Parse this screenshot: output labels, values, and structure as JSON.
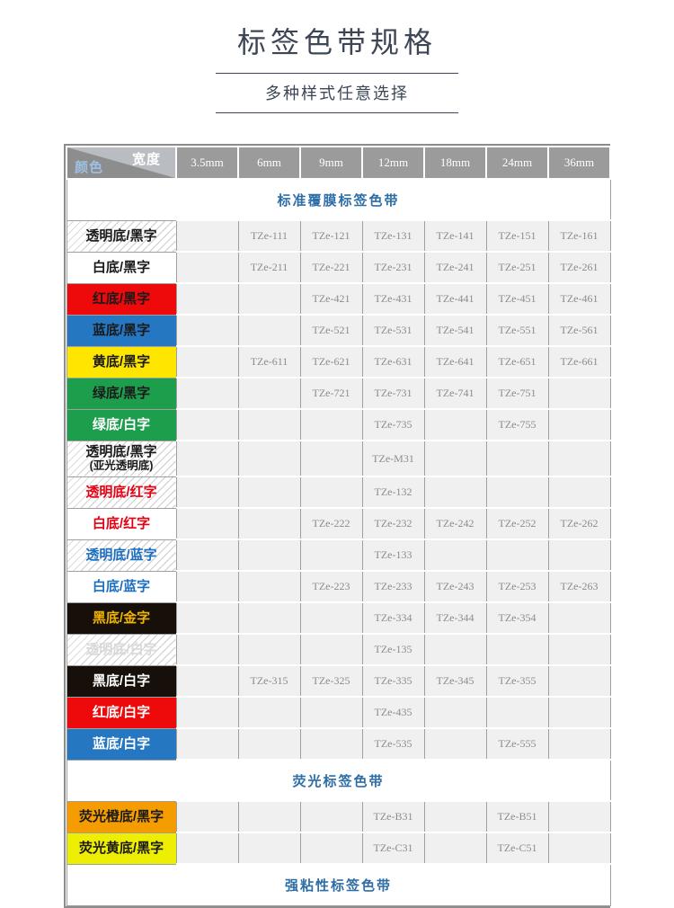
{
  "header": {
    "title": "标签色带规格",
    "subtitle": "多种样式任意选择"
  },
  "colors": {
    "title_text": "#3d4654",
    "section_title": "#2e6ea6",
    "header_bg": "#9b9b9b",
    "corner_dark": "#8d8d8d",
    "corner_light": "#b9bcc0",
    "grid": "#a0a0a0",
    "cell_bg": "#f0f0f0",
    "code_text": "#8c8c8c",
    "width_label_color": "#ffffff",
    "color_label_color": "#9fc0e4"
  },
  "table": {
    "corner": {
      "width_label": "宽度",
      "color_label": "颜色"
    },
    "columns": [
      "3.5mm",
      "6mm",
      "9mm",
      "12mm",
      "18mm",
      "24mm",
      "36mm"
    ],
    "sections": [
      {
        "title": "标准覆膜标签色带",
        "rows": [
          {
            "label": "透明底/黑字",
            "sublabel": "",
            "pattern": "hatch",
            "bg": "#ffffff",
            "fg": "#1a1a1a",
            "cells": [
              "",
              "TZe-111",
              "TZe-121",
              "TZe-131",
              "TZe-141",
              "TZe-151",
              "TZe-161"
            ]
          },
          {
            "label": "白底/黑字",
            "sublabel": "",
            "pattern": "solid",
            "bg": "#ffffff",
            "fg": "#1a1a1a",
            "cells": [
              "",
              "TZe-211",
              "TZe-221",
              "TZe-231",
              "TZe-241",
              "TZe-251",
              "TZe-261"
            ]
          },
          {
            "label": "红底/黑字",
            "sublabel": "",
            "pattern": "solid",
            "bg": "#ee0a0a",
            "fg": "#1a1a1a",
            "cells": [
              "",
              "",
              "TZe-421",
              "TZe-431",
              "TZe-441",
              "TZe-451",
              "TZe-461"
            ]
          },
          {
            "label": "蓝底/黑字",
            "sublabel": "",
            "pattern": "solid",
            "bg": "#2577c2",
            "fg": "#1a1a1a",
            "cells": [
              "",
              "",
              "TZe-521",
              "TZe-531",
              "TZe-541",
              "TZe-551",
              "TZe-561"
            ]
          },
          {
            "label": "黄底/黑字",
            "sublabel": "",
            "pattern": "solid",
            "bg": "#ffe600",
            "fg": "#1a1a1a",
            "cells": [
              "",
              "TZe-611",
              "TZe-621",
              "TZe-631",
              "TZe-641",
              "TZe-651",
              "TZe-661"
            ]
          },
          {
            "label": "绿底/黑字",
            "sublabel": "",
            "pattern": "solid",
            "bg": "#1d9e4d",
            "fg": "#1a1a1a",
            "cells": [
              "",
              "",
              "TZe-721",
              "TZe-731",
              "TZe-741",
              "TZe-751",
              ""
            ]
          },
          {
            "label": "绿底/白字",
            "sublabel": "",
            "pattern": "solid",
            "bg": "#1d9e4d",
            "fg": "#ffffff",
            "cells": [
              "",
              "",
              "",
              "TZe-735",
              "",
              "TZe-755",
              ""
            ]
          },
          {
            "label": "透明底/黑字",
            "sublabel": "(亚光透明底)",
            "pattern": "hatch",
            "bg": "#ffffff",
            "fg": "#1a1a1a",
            "cells": [
              "",
              "",
              "",
              "TZe-M31",
              "",
              "",
              ""
            ]
          },
          {
            "label": "透明底/红字",
            "sublabel": "",
            "pattern": "hatch",
            "bg": "#ffffff",
            "fg": "#e60012",
            "cells": [
              "",
              "",
              "",
              "TZe-132",
              "",
              "",
              ""
            ]
          },
          {
            "label": "白底/红字",
            "sublabel": "",
            "pattern": "solid",
            "bg": "#ffffff",
            "fg": "#e60012",
            "cells": [
              "",
              "",
              "TZe-222",
              "TZe-232",
              "TZe-242",
              "TZe-252",
              "TZe-262"
            ]
          },
          {
            "label": "透明底/蓝字",
            "sublabel": "",
            "pattern": "hatch",
            "bg": "#ffffff",
            "fg": "#1c6fc0",
            "cells": [
              "",
              "",
              "",
              "TZe-133",
              "",
              "",
              ""
            ]
          },
          {
            "label": "白底/蓝字",
            "sublabel": "",
            "pattern": "solid",
            "bg": "#ffffff",
            "fg": "#1c6fc0",
            "cells": [
              "",
              "",
              "TZe-223",
              "TZe-233",
              "TZe-243",
              "TZe-253",
              "TZe-263"
            ]
          },
          {
            "label": "黑底/金字",
            "sublabel": "",
            "pattern": "solid",
            "bg": "#17100a",
            "fg": "#f0b400",
            "cells": [
              "",
              "",
              "",
              "TZe-334",
              "TZe-344",
              "TZe-354",
              ""
            ]
          },
          {
            "label": "透明底/白字",
            "sublabel": "",
            "pattern": "hatch",
            "bg": "#ffffff",
            "fg": "#d9d9d9",
            "cells": [
              "",
              "",
              "",
              "TZe-135",
              "",
              "",
              ""
            ]
          },
          {
            "label": "黑底/白字",
            "sublabel": "",
            "pattern": "solid",
            "bg": "#17100a",
            "fg": "#ffffff",
            "cells": [
              "",
              "TZe-315",
              "TZe-325",
              "TZe-335",
              "TZe-345",
              "TZe-355",
              ""
            ]
          },
          {
            "label": "红底/白字",
            "sublabel": "",
            "pattern": "solid",
            "bg": "#ee0a0a",
            "fg": "#ffffff",
            "cells": [
              "",
              "",
              "",
              "TZe-435",
              "",
              "",
              ""
            ]
          },
          {
            "label": "蓝底/白字",
            "sublabel": "",
            "pattern": "solid",
            "bg": "#2577c2",
            "fg": "#ffffff",
            "cells": [
              "",
              "",
              "",
              "TZe-535",
              "",
              "TZe-555",
              ""
            ]
          }
        ]
      },
      {
        "title": "荧光标签色带",
        "rows": [
          {
            "label": "荧光橙底/黑字",
            "sublabel": "",
            "pattern": "solid",
            "bg": "#f59d00",
            "fg": "#1a1a1a",
            "cells": [
              "",
              "",
              "",
              "TZe-B31",
              "",
              "TZe-B51",
              ""
            ]
          },
          {
            "label": "荧光黄底/黑字",
            "sublabel": "",
            "pattern": "solid",
            "bg": "#eeee00",
            "fg": "#1a1a1a",
            "cells": [
              "",
              "",
              "",
              "TZe-C31",
              "",
              "TZe-C51",
              ""
            ]
          }
        ]
      },
      {
        "title": "强粘性标签色带",
        "rows": []
      }
    ]
  }
}
